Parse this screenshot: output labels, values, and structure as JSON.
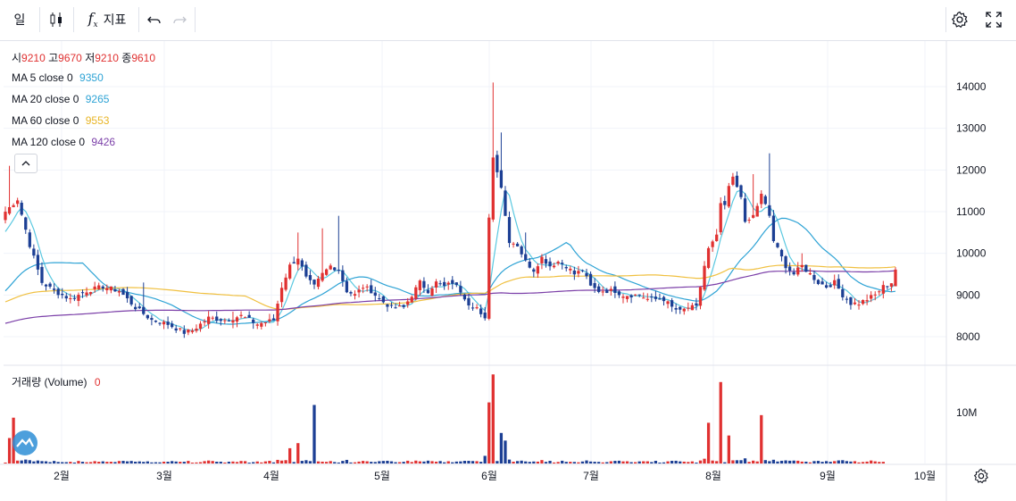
{
  "toolbar": {
    "interval_label": "일",
    "indicators_label": "지표"
  },
  "ohlc": {
    "open_label": "시",
    "open": "9210",
    "high_label": "고",
    "high": "9670",
    "low_label": "저",
    "low": "9210",
    "close_label": "종",
    "close": "9610"
  },
  "ma": [
    {
      "label": "MA 5 close 0",
      "value": "9350",
      "color": "#2ea3d5"
    },
    {
      "label": "MA 20 close 0",
      "value": "9265",
      "color": "#2ea3d5"
    },
    {
      "label": "MA 60 close 0",
      "value": "9553",
      "color": "#e8b526"
    },
    {
      "label": "MA 120 close 0",
      "value": "9426",
      "color": "#7b3fa8"
    }
  ],
  "volume": {
    "label": "거래량 (Volume)",
    "value": "0"
  },
  "colors": {
    "up": "#e03131",
    "down": "#1c3f94",
    "ma5": "#5ac8e0",
    "ma20": "#2ea3d5",
    "ma60": "#f0c040",
    "ma120": "#7b3fa8",
    "ohlc_value": "#e03131"
  },
  "chart_data": {
    "type": "candlestick",
    "y_ticks": [
      14000,
      13000,
      12000,
      11000,
      10000,
      9000,
      8000
    ],
    "ylim": [
      7400,
      14900
    ],
    "volume_ticks": [
      {
        "value": 10000000,
        "label": "10M"
      }
    ],
    "x_ticks": [
      "2월",
      "3월",
      "4월",
      "5월",
      "6월",
      "7월",
      "8월",
      "9월",
      "10월"
    ],
    "close_anchors": [
      [
        0,
        11000
      ],
      [
        3,
        11300
      ],
      [
        6,
        10200
      ],
      [
        9,
        9300
      ],
      [
        12,
        9100
      ],
      [
        16,
        8900
      ],
      [
        20,
        9100
      ],
      [
        24,
        9200
      ],
      [
        28,
        9100
      ],
      [
        32,
        8700
      ],
      [
        36,
        8400
      ],
      [
        40,
        8300
      ],
      [
        44,
        8100
      ],
      [
        46,
        8150
      ],
      [
        50,
        8450
      ],
      [
        54,
        8400
      ],
      [
        58,
        8500
      ],
      [
        62,
        8300
      ],
      [
        66,
        8400
      ],
      [
        68,
        9200
      ],
      [
        70,
        9700
      ],
      [
        72,
        9900
      ],
      [
        74,
        9400
      ],
      [
        76,
        9200
      ],
      [
        78,
        9500
      ],
      [
        80,
        9700
      ],
      [
        82,
        9600
      ],
      [
        84,
        9100
      ],
      [
        86,
        9000
      ],
      [
        88,
        9200
      ],
      [
        90,
        9100
      ],
      [
        92,
        8900
      ],
      [
        95,
        8700
      ],
      [
        98,
        8700
      ],
      [
        100,
        9000
      ],
      [
        102,
        9300
      ],
      [
        104,
        9100
      ],
      [
        106,
        9300
      ],
      [
        108,
        9200
      ],
      [
        110,
        9300
      ],
      [
        112,
        9100
      ],
      [
        114,
        8800
      ],
      [
        116,
        8700
      ],
      [
        117,
        8500
      ],
      [
        118,
        8400
      ],
      [
        119,
        10900
      ],
      [
        120,
        12300
      ],
      [
        121,
        12000
      ],
      [
        122,
        11600
      ],
      [
        123,
        10900
      ],
      [
        124,
        10300
      ],
      [
        126,
        10200
      ],
      [
        128,
        9800
      ],
      [
        130,
        9600
      ],
      [
        132,
        9900
      ],
      [
        134,
        9700
      ],
      [
        136,
        9800
      ],
      [
        138,
        9700
      ],
      [
        140,
        9500
      ],
      [
        142,
        9600
      ],
      [
        144,
        9200
      ],
      [
        146,
        9100
      ],
      [
        148,
        9100
      ],
      [
        150,
        9100
      ],
      [
        152,
        9000
      ],
      [
        154,
        9000
      ],
      [
        156,
        9000
      ],
      [
        158,
        8900
      ],
      [
        160,
        8900
      ],
      [
        162,
        8900
      ],
      [
        164,
        8700
      ],
      [
        166,
        8600
      ],
      [
        168,
        8700
      ],
      [
        170,
        8700
      ],
      [
        172,
        9700
      ],
      [
        173,
        10100
      ],
      [
        175,
        10400
      ],
      [
        176,
        11200
      ],
      [
        177,
        11100
      ],
      [
        178,
        11600
      ],
      [
        179,
        11800
      ],
      [
        180,
        11600
      ],
      [
        181,
        11400
      ],
      [
        182,
        10700
      ],
      [
        184,
        10900
      ],
      [
        186,
        11400
      ],
      [
        188,
        10900
      ],
      [
        189,
        10300
      ],
      [
        190,
        10100
      ],
      [
        192,
        9700
      ],
      [
        194,
        9500
      ],
      [
        196,
        9700
      ],
      [
        198,
        9500
      ],
      [
        200,
        9300
      ],
      [
        202,
        9200
      ],
      [
        204,
        9300
      ],
      [
        206,
        9000
      ],
      [
        208,
        8800
      ],
      [
        210,
        8800
      ],
      [
        212,
        8900
      ],
      [
        214,
        9000
      ],
      [
        216,
        9200
      ],
      [
        218,
        9300
      ],
      [
        219,
        9610
      ]
    ],
    "spikes": [
      [
        1,
        12100
      ],
      [
        34,
        9300
      ],
      [
        56,
        8600
      ],
      [
        72,
        10500
      ],
      [
        78,
        10600
      ],
      [
        82,
        10900
      ],
      [
        120,
        14100
      ],
      [
        122,
        12900
      ],
      [
        128,
        10500
      ],
      [
        184,
        11900
      ],
      [
        188,
        12400
      ],
      [
        196,
        10000
      ]
    ]
  }
}
